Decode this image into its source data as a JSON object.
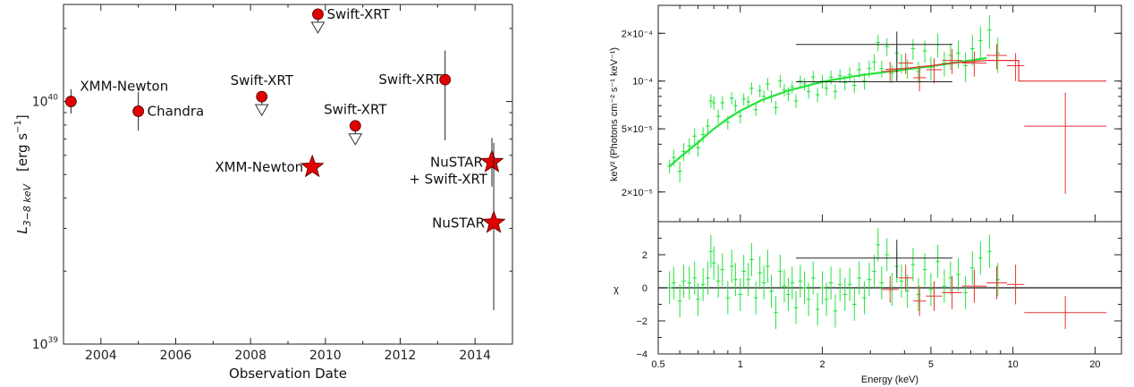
{
  "chart_data": [
    {
      "type": "scatter",
      "xlabel": "Observation Date",
      "ylabel": "L",
      "ylabel_sub": "3−8 keV",
      "ylabel_unit": "[erg s",
      "ylabel_unit_sup": "−1",
      "ylabel_unit_end": "]",
      "xlim": [
        2003.0,
        2015.0
      ],
      "ylim_log10": [
        39.0,
        40.4
      ],
      "x_ticks": [
        2004,
        2006,
        2008,
        2010,
        2012,
        2014
      ],
      "y_ticks": [
        {
          "log": 39,
          "base": "10",
          "exp": "39"
        },
        {
          "log": 40,
          "base": "10",
          "exp": "40"
        }
      ],
      "upper_limit_arrow_dex": 0.07,
      "series": [
        {
          "marker": "circle",
          "color": "#e00000",
          "points": [
            {
              "x": 2003.2,
              "log_y": 40.0,
              "err_lo": 0.05,
              "err_hi": 0.05,
              "upper_limit": false,
              "label": "XMM-Newton",
              "label_pos": "above-right"
            },
            {
              "x": 2005.0,
              "log_y": 39.96,
              "err_lo": 0.08,
              "err_hi": 0.08,
              "upper_limit": false,
              "label": "Chandra",
              "label_pos": "right"
            },
            {
              "x": 2008.3,
              "log_y": 40.02,
              "err_lo": 0,
              "err_hi": 0,
              "upper_limit": true,
              "label": "Swift-XRT",
              "label_pos": "above"
            },
            {
              "x": 2009.8,
              "log_y": 40.36,
              "err_lo": 0,
              "err_hi": 0,
              "upper_limit": true,
              "label": "Swift-XRT",
              "label_pos": "right"
            },
            {
              "x": 2010.8,
              "log_y": 39.9,
              "err_lo": 0,
              "err_hi": 0,
              "upper_limit": true,
              "label": "Swift-XRT",
              "label_pos": "above"
            },
            {
              "x": 2013.2,
              "log_y": 40.09,
              "err_lo": 0.25,
              "err_hi": 0.12,
              "upper_limit": false,
              "label": "Swift-XRT",
              "label_pos": "left"
            }
          ]
        },
        {
          "marker": "star",
          "color": "#e00000",
          "points": [
            {
              "x": 2009.65,
              "log_y": 39.73,
              "err_lo": 0,
              "err_hi": 0,
              "upper_limit": false,
              "label": "XMM-Newton",
              "label_pos": "left"
            },
            {
              "x": 2014.45,
              "log_y": 39.75,
              "err_lo": 0.1,
              "err_hi": 0.1,
              "upper_limit": false,
              "label": "NuSTAR",
              "label_pos": "left"
            },
            {
              "x": 2014.5,
              "log_y": 39.5,
              "err_lo": 0.36,
              "err_hi": 0.33,
              "upper_limit": false,
              "label": "NuSTAR",
              "label_pos": "left"
            }
          ]
        }
      ],
      "extra_labels": [
        "+ Swift-XRT"
      ]
    },
    {
      "type": "line",
      "xlabel": "Energy (keV)",
      "ylabel": "keV² (Photons cm⁻² s⁻¹ keV⁻¹)",
      "residual_ylabel": "χ",
      "xscale": "log",
      "yscale": "log",
      "xlim": [
        0.5,
        25
      ],
      "ylim": [
        1.3e-05,
        0.0003
      ],
      "residual_ylim": [
        -4,
        4
      ],
      "x_ticks": [
        0.5,
        1,
        2,
        5,
        10,
        20
      ],
      "x_tick_labels": [
        "0.5",
        "1",
        "2",
        "5",
        "10",
        "20"
      ],
      "y_ticks": [
        2e-05,
        5e-05,
        0.0001,
        0.0002
      ],
      "y_tick_labels": [
        "2×10⁻⁵",
        "5×10⁻⁵",
        "10⁻⁴",
        "2×10⁻⁴"
      ],
      "residual_ticks": [
        -4,
        -2,
        0,
        2
      ],
      "residual_tick_labels": [
        "−4",
        "−2",
        "0",
        "2"
      ],
      "colors": {
        "green": "#22e33a",
        "red": "#e83030",
        "black": "#222222"
      },
      "model_curve": [
        [
          0.55,
          2.9e-05
        ],
        [
          0.6,
          3.3e-05
        ],
        [
          0.7,
          4.1e-05
        ],
        [
          0.8,
          5e-05
        ],
        [
          0.9,
          5.8e-05
        ],
        [
          1.0,
          6.5e-05
        ],
        [
          1.2,
          7.6e-05
        ],
        [
          1.5,
          8.7e-05
        ],
        [
          2.0,
          9.9e-05
        ],
        [
          2.5,
          0.000106
        ],
        [
          3.0,
          0.000111
        ],
        [
          4.0,
          0.000118
        ],
        [
          5.0,
          0.000124
        ],
        [
          6.0,
          0.00013
        ],
        [
          7.0,
          0.000135
        ],
        [
          8.0,
          0.00014
        ]
      ],
      "series": [
        {
          "name": "",
          "color": "green",
          "points": [
            [
              0.55,
              2.9e-05,
              0.1
            ],
            [
              0.57,
              3.3e-05,
              0.12
            ],
            [
              0.6,
              2.7e-05,
              0.15
            ],
            [
              0.62,
              3.6e-05,
              0.13
            ],
            [
              0.65,
              3.9e-05,
              0.12
            ],
            [
              0.68,
              4.5e-05,
              0.12
            ],
            [
              0.7,
              3.8e-05,
              0.12
            ],
            [
              0.73,
              4.6e-05,
              0.11
            ],
            [
              0.76,
              5.2e-05,
              0.11
            ],
            [
              0.78,
              7.5e-05,
              0.1
            ],
            [
              0.8,
              7.3e-05,
              0.1
            ],
            [
              0.83,
              6e-05,
              0.1
            ],
            [
              0.86,
              7.3e-05,
              0.1
            ],
            [
              0.9,
              5.5e-05,
              0.1
            ],
            [
              0.93,
              7.8e-05,
              0.09
            ],
            [
              0.96,
              7e-05,
              0.09
            ],
            [
              1.0,
              6e-05,
              0.1
            ],
            [
              1.03,
              7.7e-05,
              0.09
            ],
            [
              1.07,
              7.4e-05,
              0.09
            ],
            [
              1.1,
              9e-05,
              0.09
            ],
            [
              1.14,
              6.6e-05,
              0.09
            ],
            [
              1.18,
              8.7e-05,
              0.09
            ],
            [
              1.22,
              8e-05,
              0.09
            ],
            [
              1.26,
              9.6e-05,
              0.09
            ],
            [
              1.3,
              8e-05,
              0.09
            ],
            [
              1.35,
              6.8e-05,
              0.1
            ],
            [
              1.4,
              0.0001,
              0.09
            ],
            [
              1.45,
              8.8e-05,
              0.09
            ],
            [
              1.5,
              8.3e-05,
              0.1
            ],
            [
              1.55,
              9.2e-05,
              0.09
            ],
            [
              1.6,
              7.5e-05,
              0.1
            ],
            [
              1.66,
              0.0001,
              0.09
            ],
            [
              1.72,
              9.6e-05,
              0.09
            ],
            [
              1.78,
              8.6e-05,
              0.1
            ],
            [
              1.85,
              0.000106,
              0.09
            ],
            [
              1.92,
              8.2e-05,
              0.1
            ],
            [
              2.0,
              0.0001,
              0.1
            ],
            [
              2.07,
              9e-05,
              0.1
            ],
            [
              2.15,
              0.000106,
              0.1
            ],
            [
              2.23,
              8.6e-05,
              0.11
            ],
            [
              2.32,
              0.000108,
              0.1
            ],
            [
              2.42,
              9.8e-05,
              0.11
            ],
            [
              2.52,
              0.00011,
              0.11
            ],
            [
              2.62,
              9.4e-05,
              0.11
            ],
            [
              2.73,
              0.000118,
              0.11
            ],
            [
              2.85,
              0.0001,
              0.12
            ],
            [
              2.97,
              0.00012,
              0.12
            ],
            [
              3.1,
              0.000132,
              0.12
            ],
            [
              3.2,
              0.000175,
              0.12
            ],
            [
              3.3,
              0.00012,
              0.12
            ],
            [
              3.45,
              0.000165,
              0.13
            ],
            [
              3.6,
              0.000112,
              0.13
            ],
            [
              3.75,
              0.00015,
              0.13
            ],
            [
              3.9,
              0.00013,
              0.14
            ],
            [
              4.1,
              0.00012,
              0.14
            ],
            [
              4.3,
              0.00016,
              0.15
            ],
            [
              4.5,
              0.000115,
              0.15
            ],
            [
              4.75,
              0.000155,
              0.16
            ],
            [
              5.0,
              0.000122,
              0.17
            ],
            [
              5.3,
              0.00017,
              0.17
            ],
            [
              5.6,
              0.00013,
              0.18
            ],
            [
              5.9,
              0.000145,
              0.19
            ],
            [
              6.3,
              0.00015,
              0.2
            ],
            [
              6.7,
              0.000125,
              0.21
            ],
            [
              7.1,
              0.00016,
              0.22
            ],
            [
              7.6,
              0.00018,
              0.23
            ],
            [
              8.2,
              0.00021,
              0.24
            ],
            [
              8.8,
              0.00015,
              0.25
            ]
          ],
          "residuals": [
            [
              0.55,
              0.0
            ],
            [
              0.57,
              0.3
            ],
            [
              0.6,
              -0.8
            ],
            [
              0.62,
              0.4
            ],
            [
              0.65,
              0.3
            ],
            [
              0.68,
              0.6
            ],
            [
              0.7,
              -0.7
            ],
            [
              0.73,
              0.2
            ],
            [
              0.76,
              0.6
            ],
            [
              0.78,
              2.2
            ],
            [
              0.8,
              1.5
            ],
            [
              0.83,
              0.4
            ],
            [
              0.86,
              1.1
            ],
            [
              0.9,
              -0.6
            ],
            [
              0.93,
              1.3
            ],
            [
              0.96,
              0.5
            ],
            [
              1.0,
              -0.4
            ],
            [
              1.03,
              1.0
            ],
            [
              1.07,
              0.5
            ],
            [
              1.1,
              1.7
            ],
            [
              1.14,
              -0.6
            ],
            [
              1.18,
              0.9
            ],
            [
              1.22,
              0.3
            ],
            [
              1.26,
              1.3
            ],
            [
              1.3,
              -0.2
            ],
            [
              1.35,
              -1.5
            ],
            [
              1.4,
              1.0
            ],
            [
              1.45,
              0.1
            ],
            [
              1.5,
              -0.4
            ],
            [
              1.55,
              0.3
            ],
            [
              1.6,
              -1.2
            ],
            [
              1.66,
              0.4
            ],
            [
              1.72,
              0.0
            ],
            [
              1.78,
              -0.7
            ],
            [
              1.85,
              0.6
            ],
            [
              1.92,
              -1.3
            ],
            [
              2.0,
              0.0
            ],
            [
              2.07,
              -0.7
            ],
            [
              2.15,
              0.3
            ],
            [
              2.23,
              -1.4
            ],
            [
              2.32,
              0.2
            ],
            [
              2.42,
              -0.4
            ],
            [
              2.52,
              0.2
            ],
            [
              2.62,
              -1.0
            ],
            [
              2.73,
              0.6
            ],
            [
              2.85,
              -0.6
            ],
            [
              2.97,
              0.5
            ],
            [
              3.1,
              1.0
            ],
            [
              3.2,
              2.6
            ],
            [
              3.3,
              0.3
            ],
            [
              3.45,
              2.0
            ],
            [
              3.6,
              -0.1
            ],
            [
              3.75,
              1.3
            ],
            [
              3.9,
              0.4
            ],
            [
              4.1,
              -0.2
            ],
            [
              4.3,
              1.4
            ],
            [
              4.5,
              -0.4
            ],
            [
              4.75,
              1.1
            ],
            [
              5.0,
              -0.1
            ],
            [
              5.3,
              1.6
            ],
            [
              5.6,
              0.1
            ],
            [
              5.9,
              0.6
            ],
            [
              6.3,
              0.8
            ],
            [
              6.7,
              -0.3
            ],
            [
              7.1,
              1.2
            ],
            [
              7.6,
              1.8
            ],
            [
              8.2,
              2.2
            ],
            [
              8.8,
              0.5
            ]
          ]
        },
        {
          "name": "",
          "color": "red",
          "step_model": [
            [
              3.4,
              0.000118
            ],
            [
              4.0,
              0.00012
            ],
            [
              5.0,
              0.000125
            ],
            [
              6.0,
              0.00013
            ],
            [
              8.0,
              0.000135
            ],
            [
              10.5,
              0.000135
            ],
            [
              10.5,
              0.0001
            ],
            [
              22,
              0.0001
            ]
          ],
          "bins": [
            [
              3.3,
              3.8,
              0.000115,
              0.15
            ],
            [
              3.8,
              4.3,
              0.00013,
              0.15
            ],
            [
              4.3,
              4.8,
              0.000105,
              0.18
            ],
            [
              4.8,
              5.5,
              0.000118,
              0.18
            ],
            [
              5.5,
              6.5,
              0.000135,
              0.18
            ],
            [
              6.5,
              8.0,
              0.00013,
              0.18
            ],
            [
              8.0,
              9.5,
              0.000145,
              0.18
            ],
            [
              9.5,
              11.0,
              0.000125,
              0.2
            ],
            [
              11.0,
              22.0,
              5.2e-05,
              0.25
            ]
          ],
          "residual_bins": [
            [
              3.3,
              3.8,
              -0.1,
              0.8
            ],
            [
              3.8,
              4.3,
              0.6,
              0.8
            ],
            [
              4.3,
              4.8,
              -0.8,
              0.9
            ],
            [
              4.8,
              5.5,
              -0.5,
              0.9
            ],
            [
              5.5,
              6.5,
              -0.3,
              1.0
            ],
            [
              6.5,
              8.0,
              0.1,
              1.0
            ],
            [
              8.0,
              9.5,
              0.3,
              1.0
            ],
            [
              9.5,
              11.0,
              0.2,
              1.2
            ],
            [
              11.0,
              22.0,
              -1.5,
              1.0
            ]
          ]
        },
        {
          "name": "",
          "color": "black",
          "bins": [
            [
              1.6,
              6.0,
              0.00017,
              0.2
            ],
            [
              1.6,
              6.0,
              9.9e-05,
              0.0
            ]
          ],
          "vertical_bar": [
            3.75,
            0.0001,
            0.000205
          ],
          "residual_bins": [
            [
              1.6,
              6.0,
              1.8,
              0.0
            ]
          ],
          "residual_vertical_bar": [
            3.75,
            0.6,
            2.9
          ]
        }
      ]
    }
  ]
}
